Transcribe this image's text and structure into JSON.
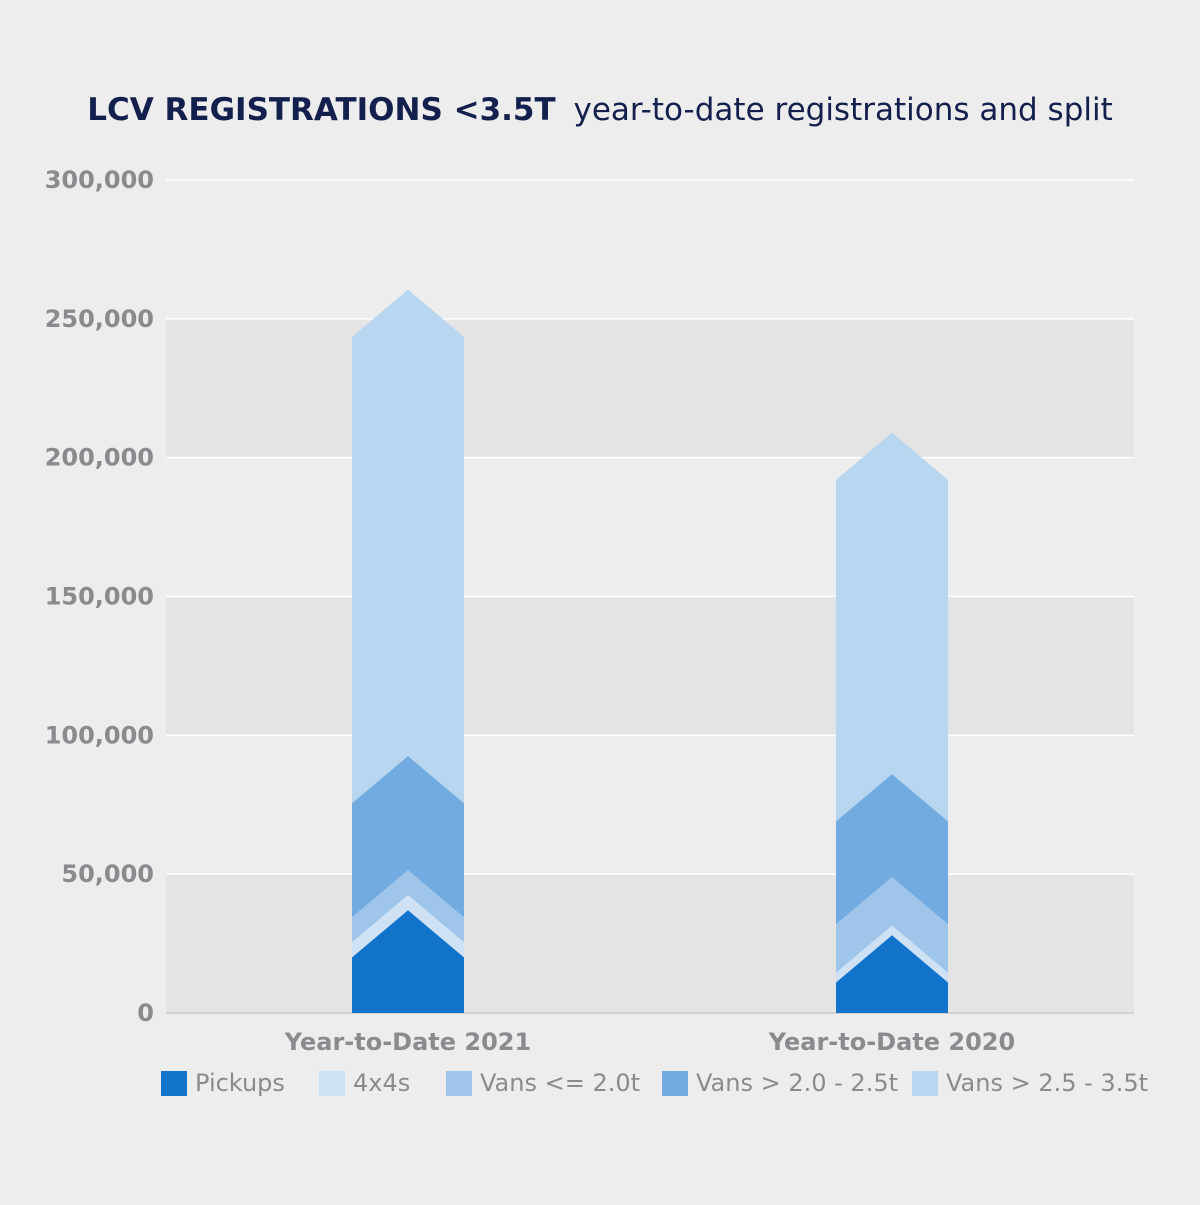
{
  "chart_data": {
    "type": "bar",
    "stacked": true,
    "title": "LCV REGISTRATIONS <3.5T",
    "subtitle": "year-to-date registrations and split",
    "categories": [
      "Year-to-Date 2021",
      "Year-to-Date 2020"
    ],
    "series": [
      {
        "name": "Pickups",
        "color": "#1173ca",
        "values": [
          20000,
          11000
        ]
      },
      {
        "name": "4x4s",
        "color": "#cfe2f5",
        "values": [
          5500,
          3500
        ]
      },
      {
        "name": "Vans <= 2.0t",
        "color": "#9fc6ea",
        "values": [
          9000,
          17500
        ]
      },
      {
        "name": "Vans > 2.0 - 2.5t",
        "color": "#72abe0",
        "values": [
          41000,
          37000
        ]
      },
      {
        "name": "Vans > 2.5 - 3.5t",
        "color": "#b8d6f0",
        "values": [
          168000,
          123000
        ]
      }
    ],
    "point_height": 17000,
    "ylim": [
      0,
      300000
    ],
    "yticks": [
      0,
      50000,
      100000,
      150000,
      200000,
      250000,
      300000
    ],
    "ytick_labels": [
      "0",
      "50,000",
      "100,000",
      "150,000",
      "200,000",
      "250,000",
      "300,000"
    ],
    "legend_position": "bottom",
    "grid": true
  }
}
